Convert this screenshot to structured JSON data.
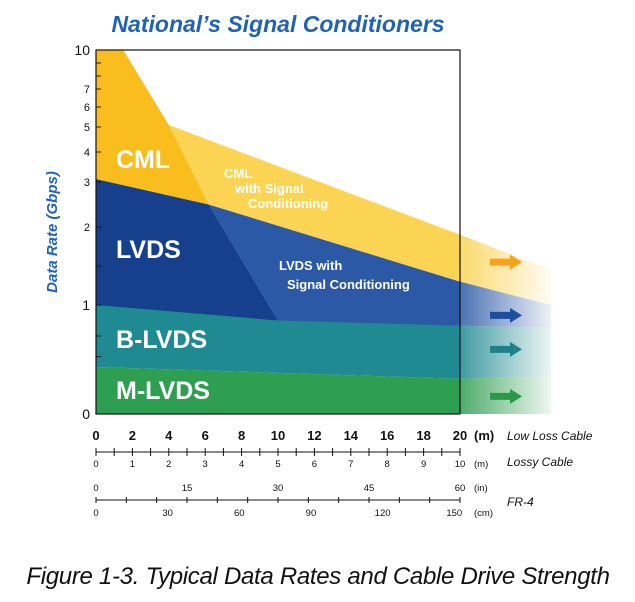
{
  "chart_data": {
    "type": "area",
    "title": "National’s Signal Conditioners",
    "ylabel": "Data Rate (Gbps)",
    "y_tick_labels": [
      "10",
      "7",
      "6",
      "5",
      "4",
      "3",
      "2",
      "1",
      "0"
    ],
    "x_axes": [
      {
        "label": "Low Loss Cable",
        "unit": "(m)",
        "ticks": [
          "0",
          "2",
          "4",
          "6",
          "8",
          "10",
          "12",
          "14",
          "16",
          "18",
          "20"
        ]
      },
      {
        "label": "Lossy Cable",
        "unit": "(m)",
        "ticks": [
          "0",
          "1",
          "2",
          "3",
          "4",
          "5",
          "6",
          "7",
          "8",
          "9",
          "10"
        ]
      },
      {
        "label": "FR-4",
        "unit": "(in)",
        "ticks": [
          "0",
          "15",
          "30",
          "45",
          "60"
        ]
      },
      {
        "label": "",
        "unit": "(cm)",
        "ticks": [
          "0",
          "30",
          "60",
          "90",
          "120",
          "150"
        ]
      }
    ],
    "series": [
      {
        "name": "CML",
        "color": "#f9bd1e",
        "points": [
          [
            1.5,
            10
          ],
          [
            4,
            5.1
          ],
          [
            6.2,
            2.5
          ],
          [
            20,
            1.9
          ]
        ]
      },
      {
        "name": "CML with Signal Conditioning",
        "color": "#fcd454",
        "points": [
          [
            4,
            5.1
          ],
          [
            20,
            1.9
          ]
        ]
      },
      {
        "name": "LVDS",
        "color": "#163f8c",
        "points": [
          [
            0,
            3.1
          ],
          [
            6.2,
            2.5
          ],
          [
            10,
            0.85
          ],
          [
            20,
            0.8
          ]
        ]
      },
      {
        "name": "LVDS with Signal Conditioning",
        "color": "#2c59a6",
        "points": [
          [
            6.2,
            2.5
          ],
          [
            20,
            1.3
          ]
        ]
      },
      {
        "name": "B-LVDS",
        "color": "#1f8a92",
        "points": [
          [
            0,
            1.0
          ],
          [
            20,
            0.8
          ]
        ]
      },
      {
        "name": "M-LVDS",
        "color": "#2e9e50",
        "points": [
          [
            0,
            0.4
          ],
          [
            20,
            0.3
          ]
        ]
      }
    ],
    "band_labels": [
      {
        "series": "CML",
        "text": "CML"
      },
      {
        "series": "CML with Signal Conditioning",
        "lines": [
          "CML",
          "with Signal",
          "Conditioning"
        ]
      },
      {
        "series": "LVDS",
        "text": "LVDS"
      },
      {
        "series": "LVDS with Signal Conditioning",
        "lines": [
          "LVDS with",
          "Signal Conditioning"
        ]
      },
      {
        "series": "B-LVDS",
        "text": "B-LVDS"
      },
      {
        "series": "M-LVDS",
        "text": "M-LVDS"
      }
    ],
    "arrow_colors": [
      "#f9bd1e",
      "#2c59a6",
      "#1f8a92",
      "#2e9e50"
    ]
  },
  "caption": "Figure 1-3. Typical Data Rates and Cable Drive Strength"
}
